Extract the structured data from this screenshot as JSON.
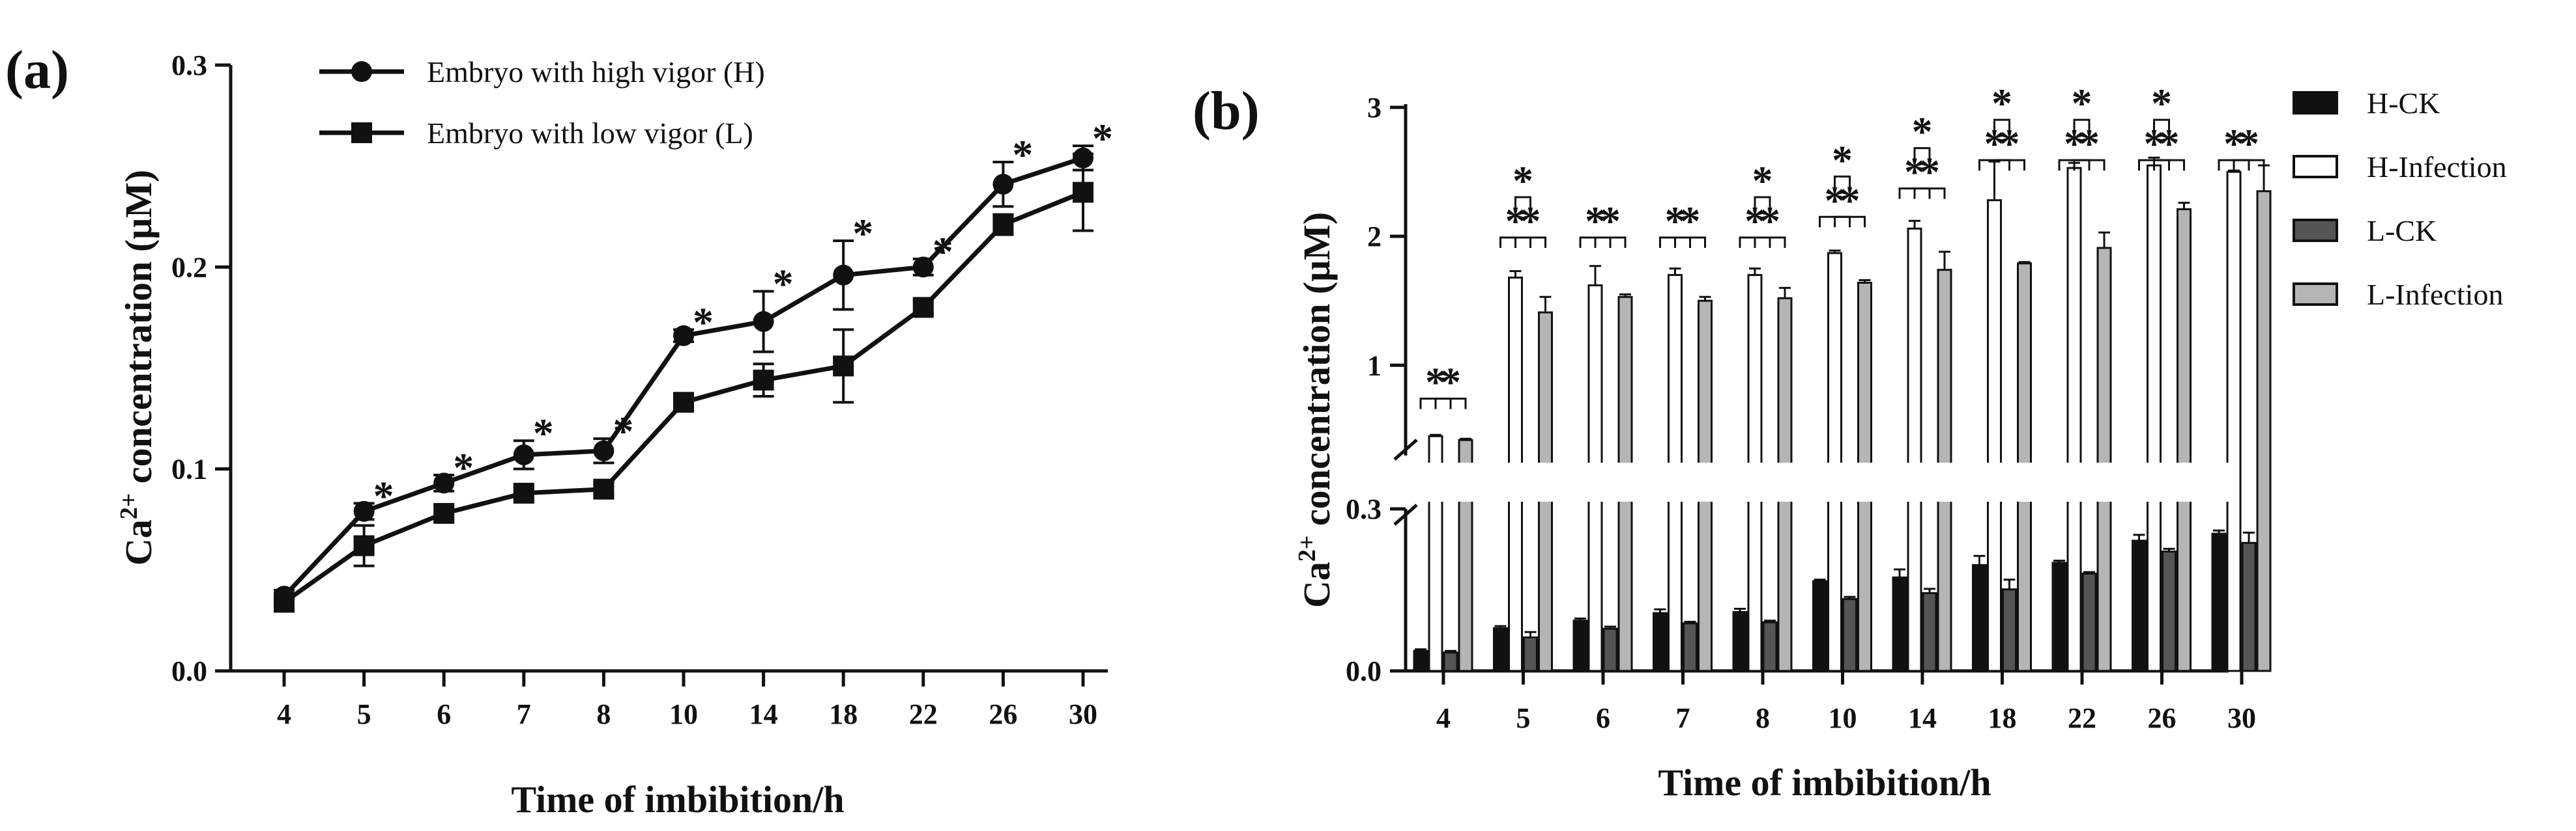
{
  "chart_data": [
    {
      "panel_label": "(a)",
      "type": "line",
      "categories": [
        "4",
        "5",
        "6",
        "7",
        "8",
        "10",
        "14",
        "18",
        "22",
        "26",
        "30"
      ],
      "xlabel": "Time of imbibition/h",
      "ylabel_main": "Ca",
      "ylabel_sup": "2+",
      "ylabel_rest": " concentration (μM)",
      "ylim": [
        0,
        0.3
      ],
      "yticks": [
        "0.0",
        "0.1",
        "0.2",
        "0.3"
      ],
      "series": [
        {
          "name": "Embryo with high vigor (H)",
          "marker": "circle",
          "values": [
            0.037,
            0.079,
            0.093,
            0.107,
            0.109,
            0.166,
            0.173,
            0.196,
            0.2,
            0.241,
            0.254
          ],
          "err": [
            0.003,
            0.004,
            0.004,
            0.007,
            0.006,
            0.003,
            0.015,
            0.017,
            0.004,
            0.011,
            0.006
          ]
        },
        {
          "name": "Embryo with low vigor (L)",
          "marker": "square",
          "values": [
            0.034,
            0.062,
            0.078,
            0.088,
            0.09,
            0.133,
            0.144,
            0.151,
            0.18,
            0.221,
            0.237
          ],
          "err": [
            0.003,
            0.01,
            0.004,
            0.003,
            0.003,
            0.004,
            0.008,
            0.018,
            0.003,
            0.005,
            0.019
          ]
        }
      ],
      "annotations": [
        "*",
        "*",
        "*",
        "*",
        "*",
        "*",
        "*",
        "*",
        "*",
        "*"
      ],
      "legend_position": "top"
    },
    {
      "panel_label": "(b)",
      "type": "bar",
      "categories": [
        "4",
        "5",
        "6",
        "7",
        "8",
        "10",
        "14",
        "18",
        "22",
        "26",
        "30"
      ],
      "xlabel": "Time of imbibition/h",
      "ylabel_main": "Ca",
      "ylabel_sup": "2+",
      "ylabel_rest": " concentration (μM)",
      "y_axis_break": true,
      "lower_ylim": [
        0,
        0.3
      ],
      "upper_ylim": [
        0.3,
        3
      ],
      "yticks_lower": [
        "0.0",
        "0.3"
      ],
      "yticks_upper": [
        "1",
        "2",
        "3"
      ],
      "legend_position": "right",
      "series": [
        {
          "name": "H-CK",
          "fill": "#111111",
          "values": [
            0.037,
            0.079,
            0.093,
            0.107,
            0.109,
            0.166,
            0.173,
            0.196,
            0.2,
            0.241,
            0.254
          ],
          "err": [
            0.003,
            0.004,
            0.004,
            0.007,
            0.006,
            0.003,
            0.015,
            0.017,
            0.004,
            0.011,
            0.006
          ]
        },
        {
          "name": "H-Infection",
          "fill": "#ffffff",
          "values": [
            0.45,
            1.68,
            1.62,
            1.7,
            1.7,
            1.87,
            2.06,
            2.28,
            2.53,
            2.55,
            2.5
          ],
          "err": [
            0.01,
            0.05,
            0.15,
            0.05,
            0.05,
            0.02,
            0.06,
            0.3,
            0.04,
            0.06,
            0.01
          ]
        },
        {
          "name": "L-CK",
          "fill": "#555555",
          "values": [
            0.034,
            0.062,
            0.078,
            0.088,
            0.09,
            0.133,
            0.144,
            0.151,
            0.18,
            0.221,
            0.237
          ],
          "err": [
            0.003,
            0.01,
            0.004,
            0.003,
            0.003,
            0.004,
            0.008,
            0.018,
            0.003,
            0.005,
            0.019
          ]
        },
        {
          "name": "L-Infection",
          "fill": "#b5b5b5",
          "values": [
            0.42,
            1.41,
            1.53,
            1.5,
            1.52,
            1.64,
            1.74,
            1.79,
            1.91,
            2.21,
            2.35
          ],
          "err": [
            0.01,
            0.12,
            0.02,
            0.03,
            0.08,
            0.02,
            0.14,
            0.01,
            0.12,
            0.05,
            0.2
          ]
        }
      ],
      "significance": {
        "pair_mark": "*",
        "pair_bracket_levels": [
          0.65,
          1.9,
          1.9,
          1.9,
          1.9,
          2.06,
          2.28,
          2.5,
          2.5,
          2.5,
          2.5
        ],
        "group_star_categories": [
          "5",
          "8",
          "10",
          "14",
          "18",
          "22",
          "26"
        ]
      }
    }
  ]
}
